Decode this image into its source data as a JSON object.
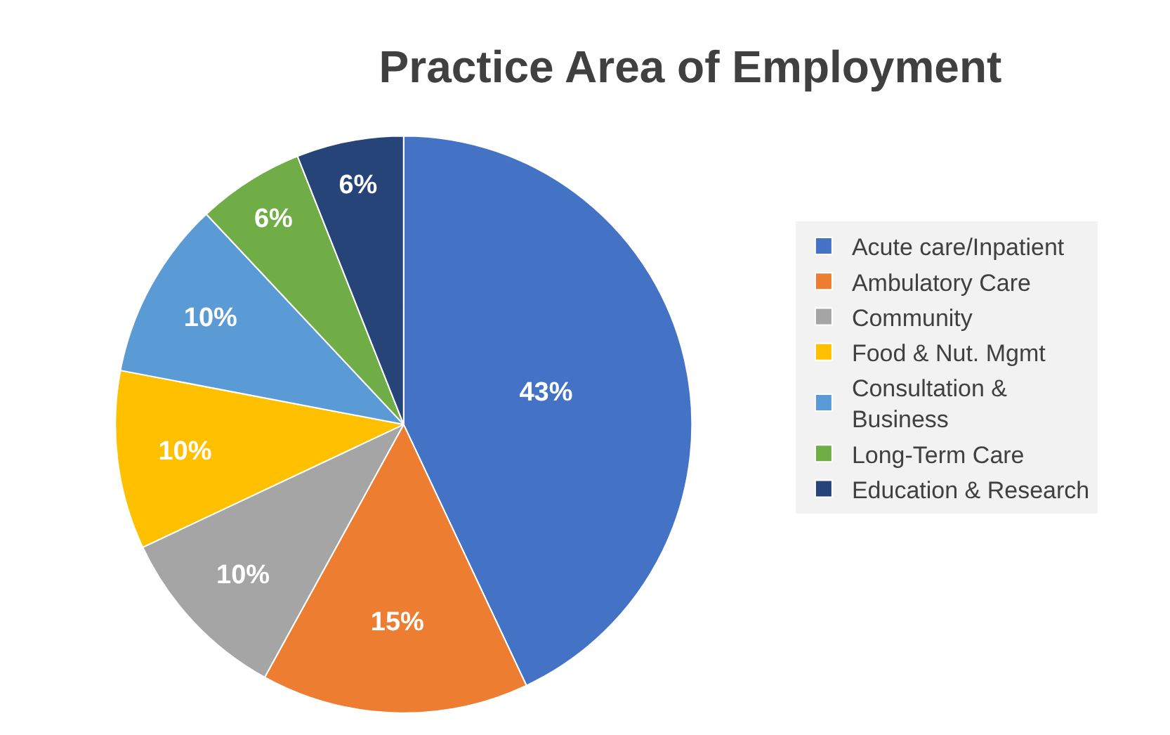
{
  "chart_data": {
    "type": "pie",
    "title": "Practice Area of Employment",
    "categories": [
      "Acute care/Inpatient",
      "Ambulatory Care",
      "Community",
      "Food & Nut. Mgmt",
      "Consultation & Business",
      "Long-Term Care",
      "Education & Research"
    ],
    "values": [
      43,
      15,
      10,
      10,
      10,
      6,
      6
    ],
    "colors": [
      "#4472c4",
      "#ed7d31",
      "#a5a5a5",
      "#ffc000",
      "#5b9bd5",
      "#70ad47",
      "#264478"
    ],
    "value_labels": [
      "43%",
      "15%",
      "10%",
      "10%",
      "10%",
      "6%",
      "6%"
    ],
    "legend": "right"
  }
}
